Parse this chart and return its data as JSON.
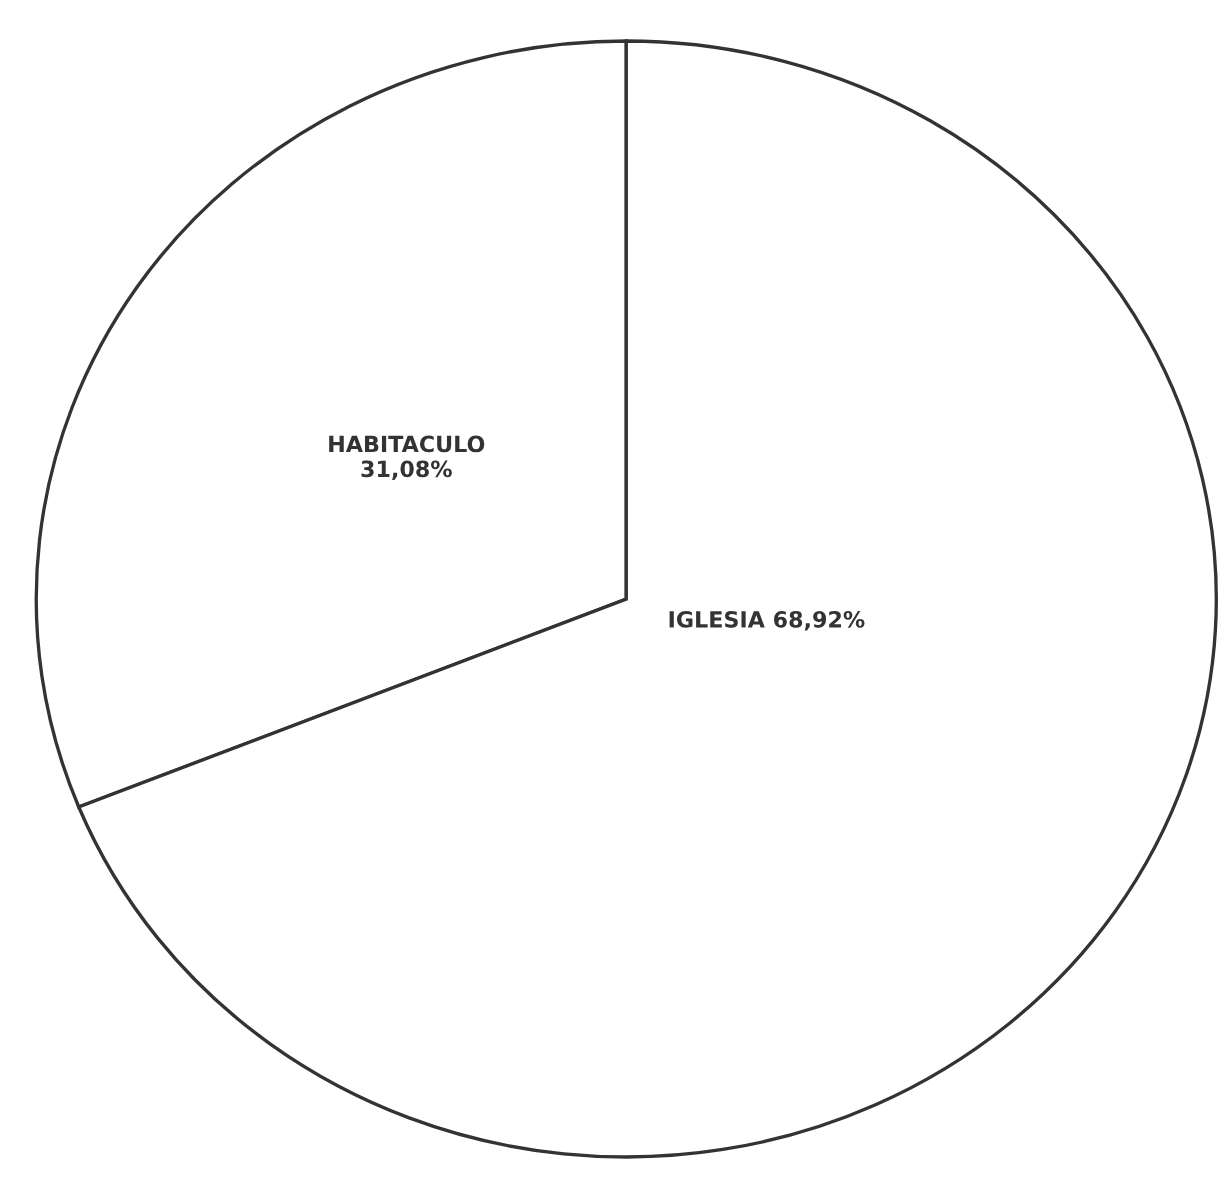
{
  "chart_data": {
    "type": "pie",
    "categories": [
      "HABITACULO",
      "IGLESIA"
    ],
    "values": [
      31.08,
      68.92
    ],
    "colors": [
      "#ffffff",
      "#ffffff"
    ],
    "value_labels": [
      "31,08%",
      "68,92%"
    ],
    "legend": false
  }
}
